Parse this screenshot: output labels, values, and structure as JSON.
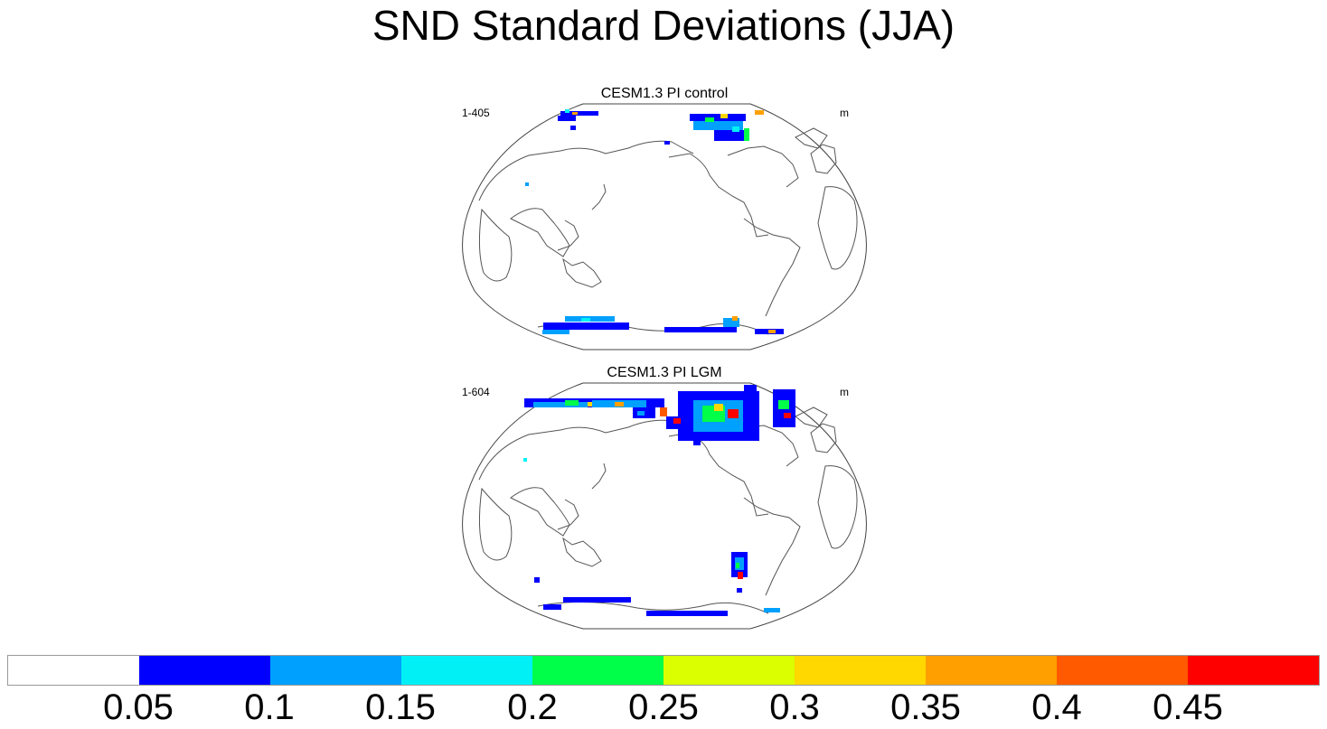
{
  "title": "SND Standard Deviations (JJA)",
  "panels": [
    {
      "title": "CESM1.3 PI control",
      "left_label": "1-405",
      "right_label": "m"
    },
    {
      "title": "CESM1.3 PI LGM",
      "left_label": "1-604",
      "right_label": "m"
    }
  ],
  "colorbar": {
    "colors": [
      "#ffffff",
      "#0000ff",
      "#00a0ff",
      "#00f0f5",
      "#00ff48",
      "#dcff00",
      "#ffd800",
      "#ffa000",
      "#ff5a00",
      "#ff0000"
    ],
    "tick_labels": [
      "0.05",
      "0.1",
      "0.15",
      "0.2",
      "0.25",
      "0.3",
      "0.35",
      "0.4",
      "0.45"
    ]
  }
}
